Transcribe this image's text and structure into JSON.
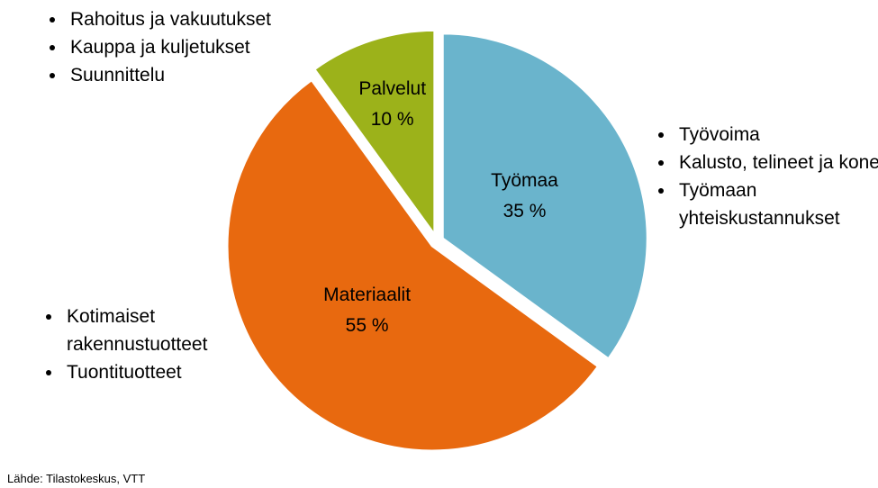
{
  "chart_data": {
    "type": "pie",
    "categories": [
      "Työmaa",
      "Materiaalit",
      "Palvelut"
    ],
    "values": [
      35,
      55,
      10
    ],
    "value_labels": [
      "35 %",
      "55 %",
      "10 %"
    ],
    "colors": [
      "#6ab4cc",
      "#e8690f",
      "#9cb21a"
    ],
    "annotations": [
      {
        "items": [
          "Rahoitus ja vakuutukset",
          "Kauppa ja kuljetukset",
          "Suunnittelu"
        ]
      },
      {
        "items": [
          "Työvoima",
          "Kalusto, telineet ja koneet",
          "Työmaan yhteiskustannukset"
        ]
      },
      {
        "items": [
          "Kotimaiset rakennustuotteet",
          "Tuontituotteet"
        ]
      }
    ],
    "source": "Lähde: Tilastokeskus, VTT"
  }
}
